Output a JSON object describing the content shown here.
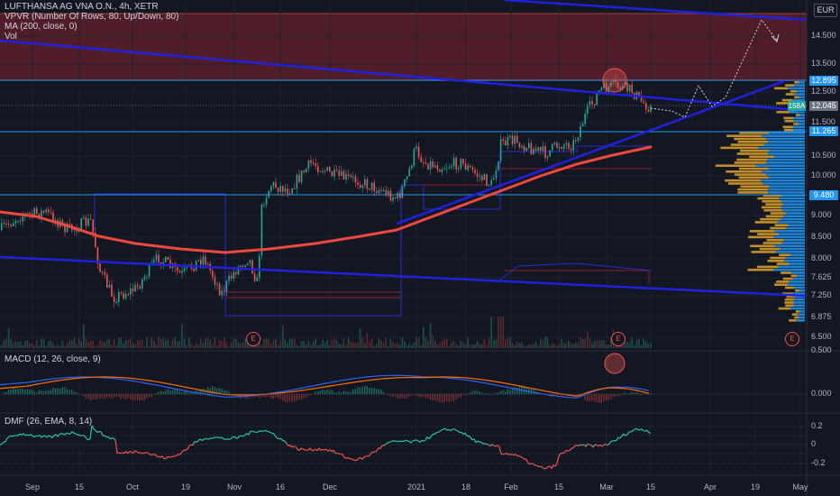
{
  "legend": {
    "title": "LUFTHANSA AG VNA O.N., 4h, XETR",
    "vpvr": "VPVR (Number Of Rows, 80, Up/Down, 80)",
    "ma": "MA (200, close, 0)",
    "vol": "Vol"
  },
  "panes": {
    "macd": "MACD (12, 26, close, 9)",
    "dmf": "DMF (26, EMA, 8, 14)"
  },
  "currency": "EUR",
  "price_axis": [
    "14.500",
    "13.500",
    "12.500",
    "11.500",
    "10.500",
    "10.000",
    "9.000",
    "8.500",
    "8.000",
    "7.625",
    "7.250",
    "6.875",
    "6.500"
  ],
  "macd_axis": [
    "0.500",
    "0.000"
  ],
  "dmf_axis": [
    "0.2",
    "0",
    "-0.2"
  ],
  "time_axis": [
    "Sep",
    "15",
    "Oct",
    "19",
    "Nov",
    "16",
    "Dec",
    "2021",
    "18",
    "Feb",
    "15",
    "Mar",
    "15",
    "Apr",
    "19",
    "May"
  ],
  "tags": {
    "resistance": "12.895",
    "last": "12.045",
    "support_1": "11.265",
    "support_2": "9.480",
    "sma": "158A"
  },
  "earnings_marker": "E",
  "colors": {
    "background": "#131722",
    "up": "#26a69a",
    "down": "#ef5350",
    "ma": "#f0483e",
    "trendline": "#2020e0",
    "level": "#2196f3",
    "vp_up": "#2196f3",
    "vp_down": "#e0a32c",
    "dmf": "#26c6a0"
  }
}
